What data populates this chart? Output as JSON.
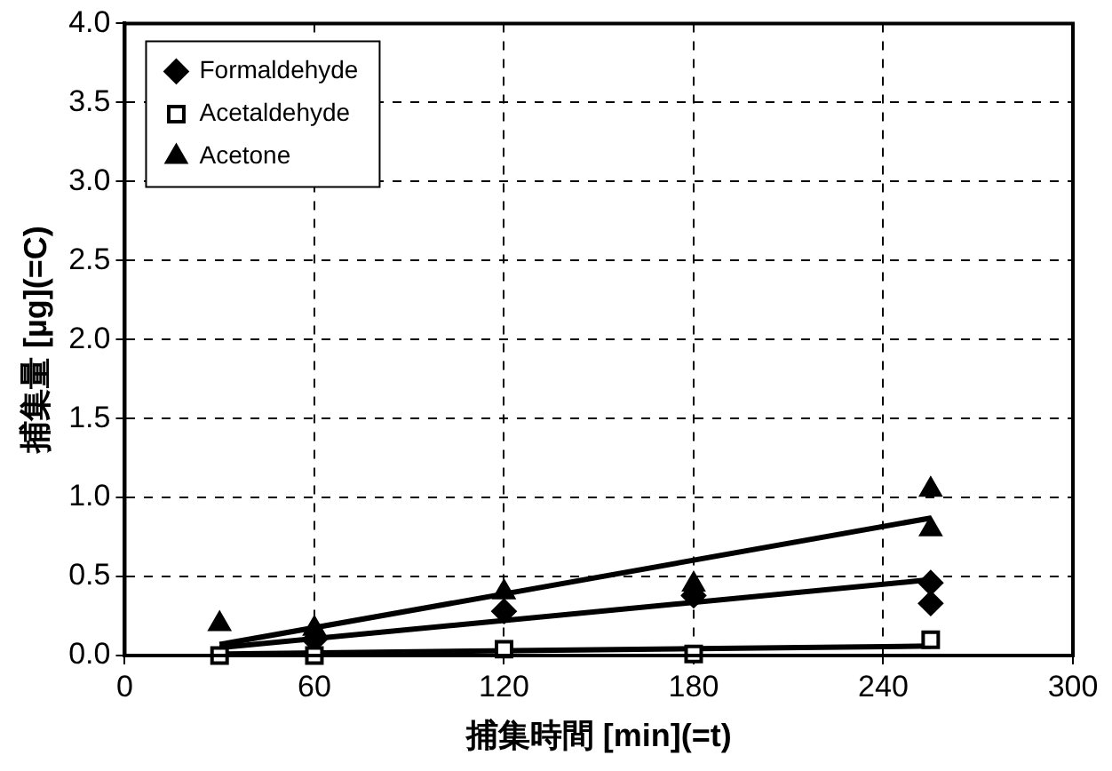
{
  "chart_data": {
    "type": "scatter",
    "xlabel": "捕集時間 [min](=t)",
    "ylabel": "捕集量 [µg](=C)",
    "xlim": [
      0,
      300
    ],
    "xticks": [
      0,
      60,
      120,
      180,
      240,
      300
    ],
    "ylim": [
      0,
      4
    ],
    "yticks": [
      {
        "value": 0,
        "label": "0.0"
      },
      {
        "value": 0.5,
        "label": "0.5"
      },
      {
        "value": 1,
        "label": "1.0"
      },
      {
        "value": 1.5,
        "label": "1.5"
      },
      {
        "value": 2,
        "label": "2.0"
      },
      {
        "value": 2.5,
        "label": "2.5"
      },
      {
        "value": 3,
        "label": "3.0"
      },
      {
        "value": 3.5,
        "label": "3.5"
      },
      {
        "value": 4,
        "label": "4.0"
      }
    ],
    "grid": true,
    "legend": "top left",
    "series": [
      {
        "name": "Formaldehyde",
        "color": "#000000",
        "marker": "diamond",
        "x": [
          60,
          120,
          180,
          255,
          255
        ],
        "values": [
          0.1,
          0.28,
          0.38,
          0.46,
          0.33
        ]
      },
      {
        "name": "Acetaldehyde",
        "color": "#000000",
        "marker": "square",
        "x": [
          30,
          60,
          120,
          180,
          255
        ],
        "values": [
          0,
          0,
          0.04,
          0.01,
          0.1
        ]
      },
      {
        "name": "Acetone",
        "color": "#000000",
        "marker": "triangle",
        "x": [
          30,
          60,
          120,
          180,
          255,
          255
        ],
        "values": [
          0.2,
          0.17,
          0.4,
          0.45,
          1.05,
          0.8
        ]
      },
      {
        "type": "line",
        "color": "#000000",
        "marker": "none",
        "x": [
          30,
          255
        ],
        "values": [
          0.07,
          0.87
        ]
      },
      {
        "type": "line",
        "color": "#000000",
        "marker": "none",
        "x": [
          30,
          255
        ],
        "values": [
          0.05,
          0.48
        ]
      },
      {
        "type": "line",
        "color": "#000000",
        "marker": "none",
        "x": [
          30,
          255
        ],
        "values": [
          0.01,
          0.06
        ]
      }
    ]
  }
}
